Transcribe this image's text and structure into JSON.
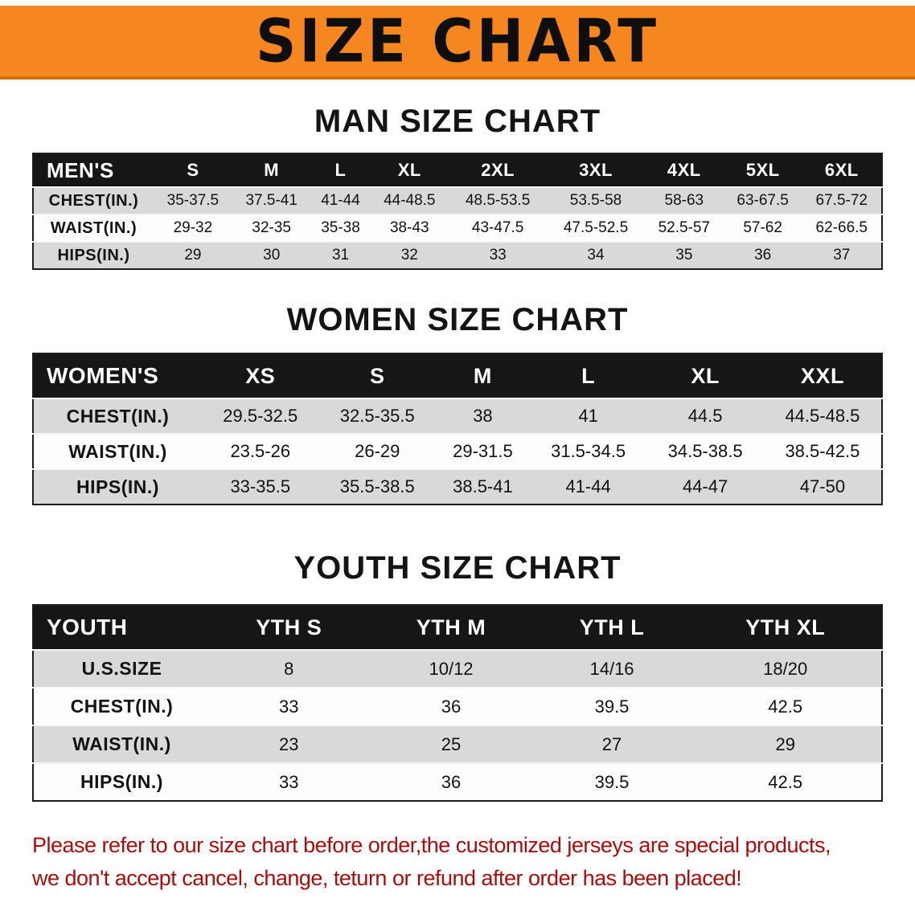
{
  "banner": {
    "title": "SIZE CHART",
    "bg_color": "#f6861f",
    "text_color": "#0e0e0e"
  },
  "sections": [
    {
      "id": "men",
      "heading": "MAN SIZE CHART",
      "table": {
        "title": "MEN'S",
        "sizes": [
          "S",
          "M",
          "L",
          "XL",
          "2XL",
          "3XL",
          "4XL",
          "5XL",
          "6XL"
        ],
        "rows": [
          {
            "label": "CHEST(IN.)",
            "values": [
              "35-37.5",
              "37.5-41",
              "41-44",
              "44-48.5",
              "48.5-53.5",
              "53.5-58",
              "58-63",
              "63-67.5",
              "67.5-72"
            ]
          },
          {
            "label": "WAIST(IN.)",
            "values": [
              "29-32",
              "32-35",
              "35-38",
              "38-43",
              "43-47.5",
              "47.5-52.5",
              "52.5-57",
              "57-62",
              "62-66.5"
            ]
          },
          {
            "label": "HIPS(IN.)",
            "values": [
              "29",
              "30",
              "31",
              "32",
              "33",
              "34",
              "35",
              "36",
              "37"
            ]
          }
        ]
      }
    },
    {
      "id": "women",
      "heading": "WOMEN SIZE CHART",
      "table": {
        "title": "WOMEN'S",
        "sizes": [
          "XS",
          "S",
          "M",
          "L",
          "XL",
          "XXL"
        ],
        "rows": [
          {
            "label": "CHEST(IN.)",
            "values": [
              "29.5-32.5",
              "32.5-35.5",
              "38",
              "41",
              "44.5",
              "44.5-48.5"
            ]
          },
          {
            "label": "WAIST(IN.)",
            "values": [
              "23.5-26",
              "26-29",
              "29-31.5",
              "31.5-34.5",
              "34.5-38.5",
              "38.5-42.5"
            ]
          },
          {
            "label": "HIPS(IN.)",
            "values": [
              "33-35.5",
              "35.5-38.5",
              "38.5-41",
              "41-44",
              "44-47",
              "47-50"
            ]
          }
        ]
      }
    },
    {
      "id": "youth",
      "heading": "YOUTH SIZE CHART",
      "table": {
        "title": "YOUTH",
        "sizes": [
          "YTH S",
          "YTH M",
          "YTH L",
          "YTH XL"
        ],
        "rows": [
          {
            "label": "U.S.SIZE",
            "values": [
              "8",
              "10/12",
              "14/16",
              "18/20"
            ]
          },
          {
            "label": "CHEST(IN.)",
            "values": [
              "33",
              "36",
              "39.5",
              "42.5"
            ]
          },
          {
            "label": "WAIST(IN.)",
            "values": [
              "23",
              "25",
              "27",
              "29"
            ]
          },
          {
            "label": "HIPS(IN.)",
            "values": [
              "33",
              "36",
              "39.5",
              "42.5"
            ]
          }
        ]
      }
    }
  ],
  "disclaimer": {
    "lines": [
      "Please refer to our size chart before order,the customized jerseys are special products,",
      "we don't accept cancel, change, teturn or refund after order has been placed!"
    ],
    "color": "#a80d0d"
  },
  "colors": {
    "table_header_bg": "#161616",
    "table_header_text": "#ffffff",
    "row_alt_bg": "#d9d9d9",
    "row_bg": "#fdfdfd",
    "table_border": "#1c1c1c"
  }
}
